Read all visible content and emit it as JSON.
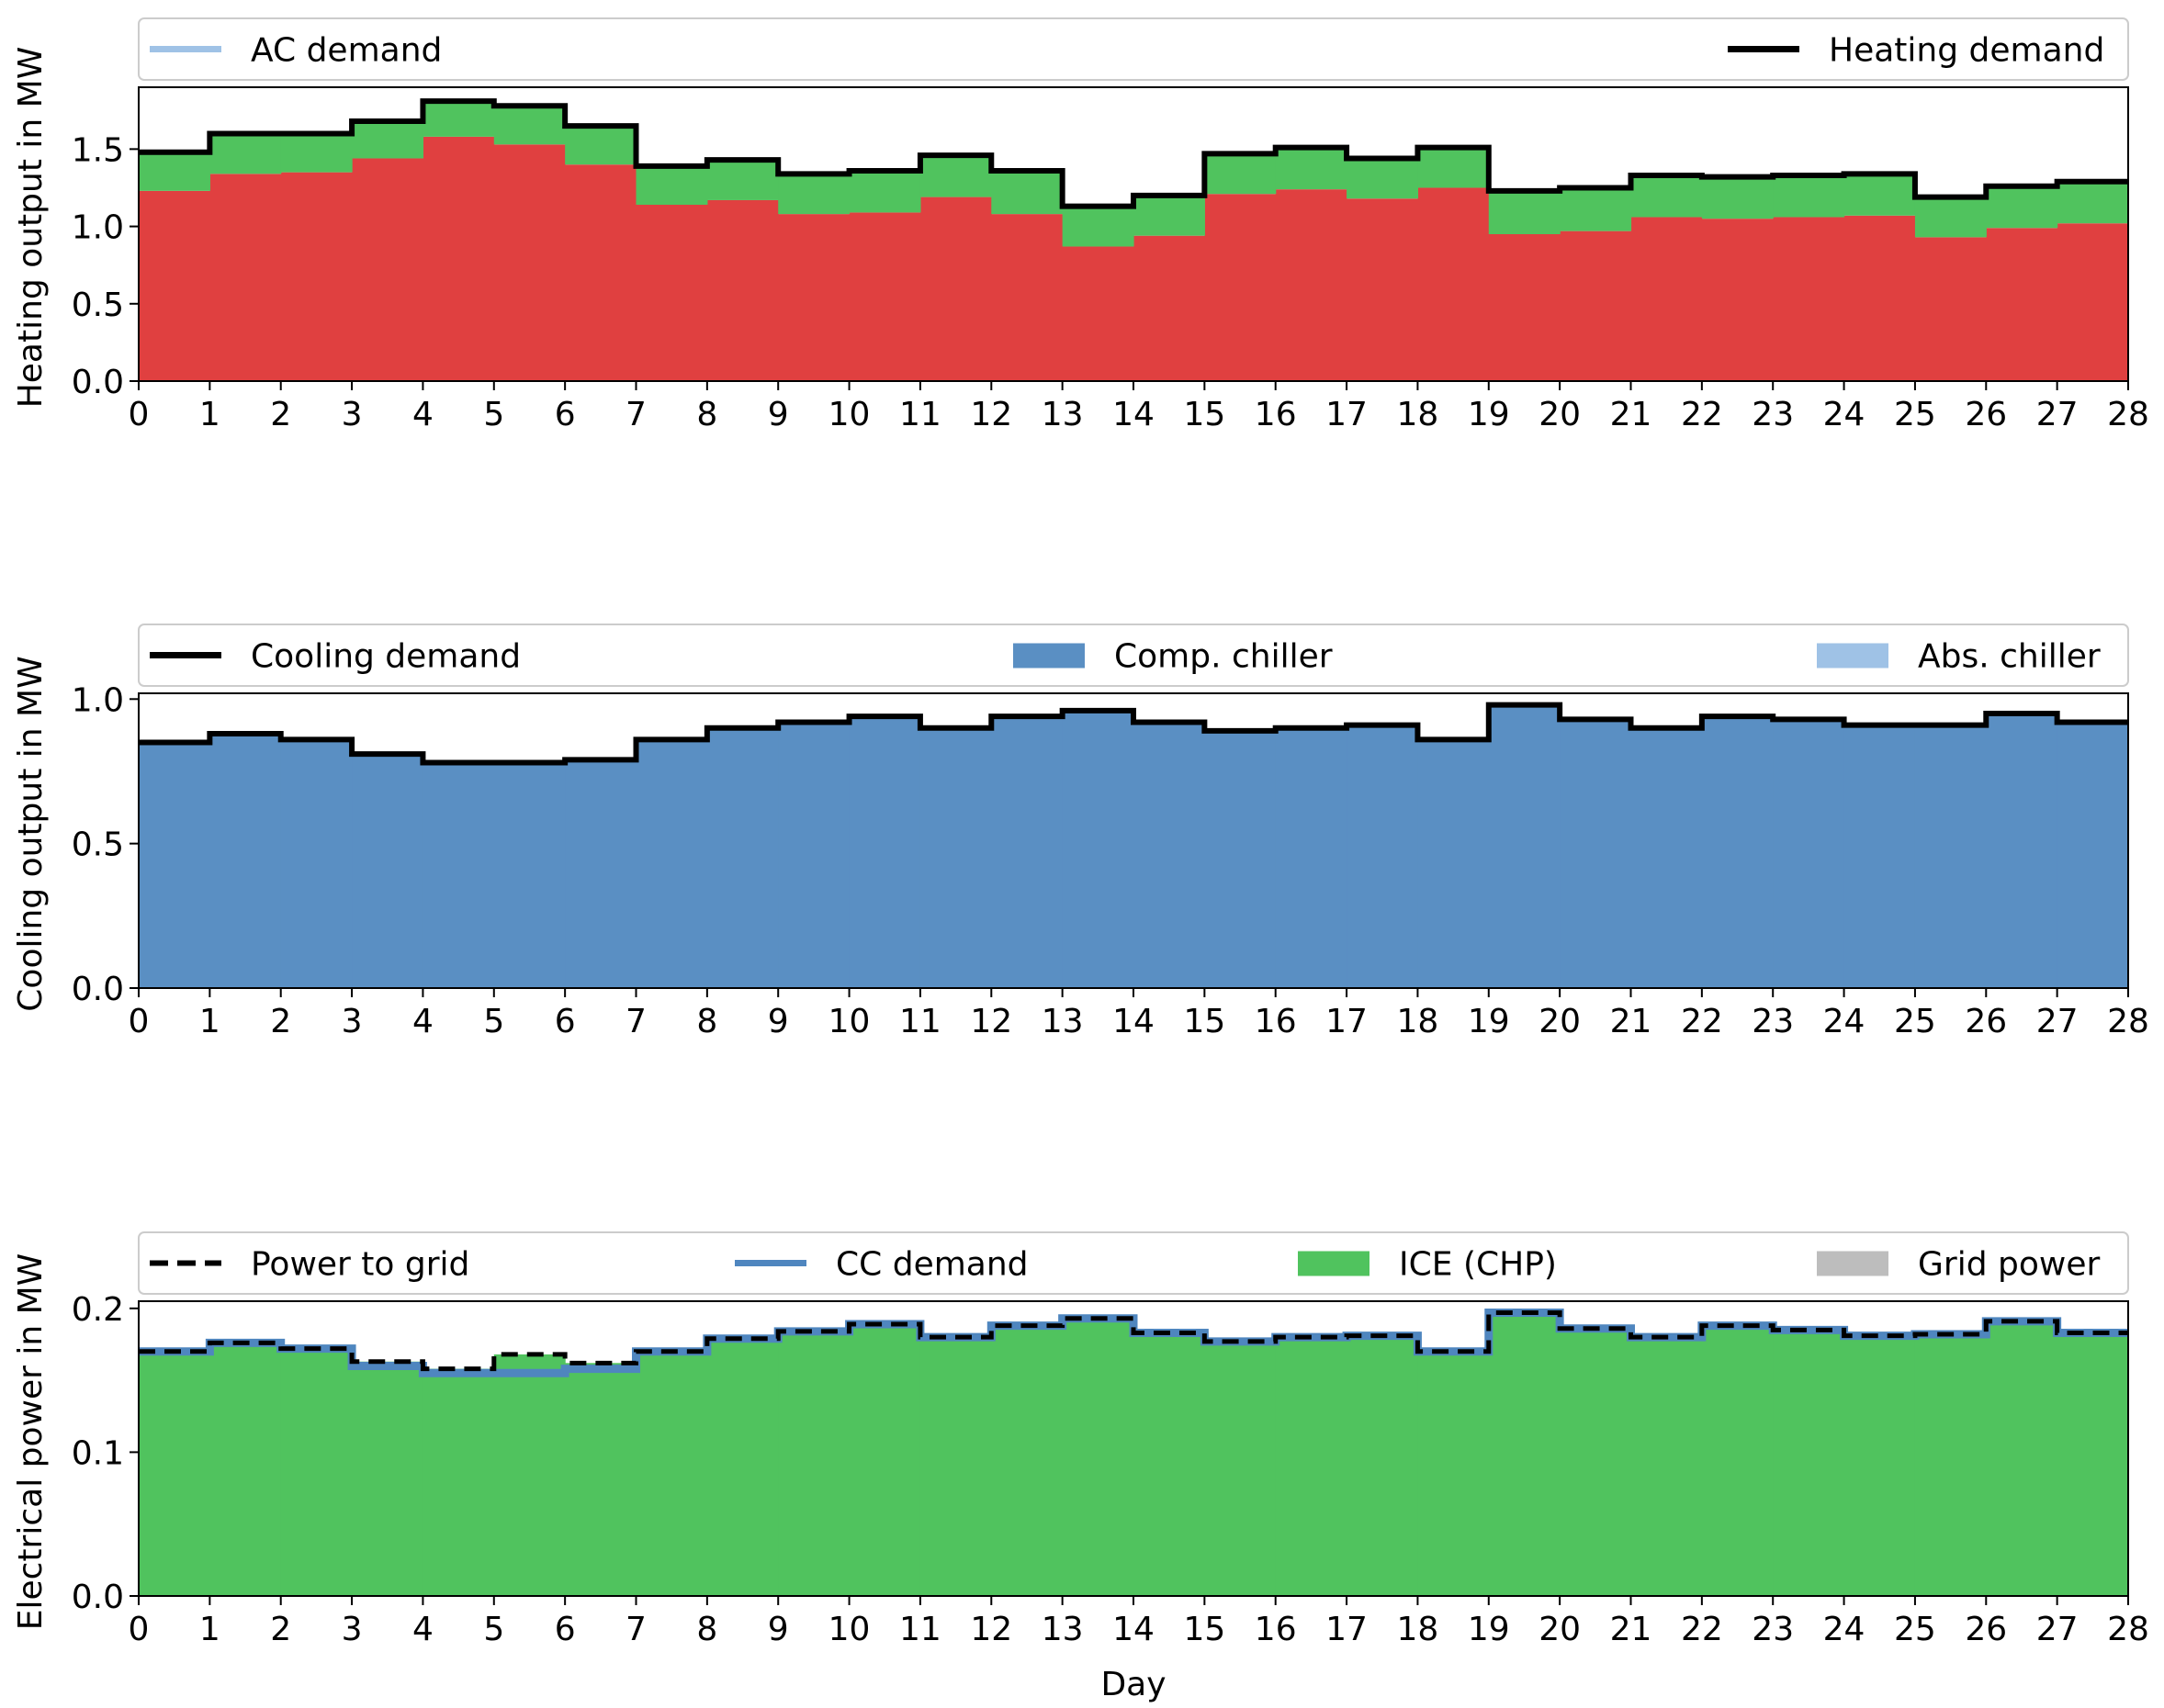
{
  "colors": {
    "heating_red": "#e04040",
    "ice_green": "#50c35e",
    "comp_chiller_blue": "#5a8fc3",
    "abs_chiller_lightblue": "#9fc2e6",
    "grid_gray": "#bdbdbd",
    "cc_demand_blue": "#4f86bf",
    "line_black": "#000000"
  },
  "chart_data": [
    {
      "type": "area",
      "step": "post",
      "ylabel": "Heating output in MW",
      "xlabel": "",
      "xlim": [
        0,
        28
      ],
      "ylim": [
        0,
        1.9
      ],
      "yticks": [
        0.0,
        0.5,
        1.0,
        1.5
      ],
      "ytick_labels": [
        "0.0",
        "0.5",
        "1.0",
        "1.5"
      ],
      "xticks": [
        0,
        1,
        2,
        3,
        4,
        5,
        6,
        7,
        8,
        9,
        10,
        11,
        12,
        13,
        14,
        15,
        16,
        17,
        18,
        19,
        20,
        21,
        22,
        23,
        24,
        25,
        26,
        27,
        28
      ],
      "x": [
        0,
        1,
        2,
        3,
        4,
        5,
        6,
        7,
        8,
        9,
        10,
        11,
        12,
        13,
        14,
        15,
        16,
        17,
        18,
        19,
        20,
        21,
        22,
        23,
        24,
        25,
        26,
        27
      ],
      "legend": {
        "placement": "top",
        "items": [
          {
            "label": "AC demand",
            "kind": "line",
            "color": "#9fc2e6",
            "align": "left"
          },
          {
            "label": "Heating demand",
            "kind": "line",
            "color": "#000000",
            "align": "right"
          }
        ]
      },
      "series": [
        {
          "name": "",
          "kind": "stack",
          "color": "#e04040",
          "values": [
            1.23,
            1.34,
            1.35,
            1.44,
            1.58,
            1.53,
            1.4,
            1.14,
            1.17,
            1.08,
            1.09,
            1.19,
            1.08,
            0.87,
            0.94,
            1.21,
            1.24,
            1.18,
            1.25,
            0.95,
            0.97,
            1.06,
            1.05,
            1.06,
            1.07,
            0.93,
            0.99,
            1.02
          ]
        },
        {
          "name": "",
          "kind": "stack",
          "color": "#50c35e",
          "values": [
            0.25,
            0.26,
            0.25,
            0.24,
            0.23,
            0.25,
            0.25,
            0.25,
            0.26,
            0.26,
            0.27,
            0.27,
            0.28,
            0.26,
            0.26,
            0.26,
            0.27,
            0.26,
            0.26,
            0.28,
            0.28,
            0.27,
            0.27,
            0.27,
            0.27,
            0.26,
            0.27,
            0.27
          ]
        },
        {
          "name": "Heating demand",
          "kind": "line",
          "color": "#000000",
          "values": [
            1.48,
            1.6,
            1.6,
            1.68,
            1.81,
            1.78,
            1.65,
            1.39,
            1.43,
            1.34,
            1.36,
            1.46,
            1.36,
            1.13,
            1.2,
            1.47,
            1.51,
            1.44,
            1.51,
            1.23,
            1.25,
            1.33,
            1.32,
            1.33,
            1.34,
            1.19,
            1.26,
            1.29
          ]
        }
      ]
    },
    {
      "type": "area",
      "step": "post",
      "ylabel": "Cooling output in MW",
      "xlabel": "",
      "xlim": [
        0,
        28
      ],
      "ylim": [
        0,
        1.02
      ],
      "yticks": [
        0.0,
        0.5,
        1.0
      ],
      "ytick_labels": [
        "0.0",
        "0.5",
        "1.0"
      ],
      "xticks": [
        0,
        1,
        2,
        3,
        4,
        5,
        6,
        7,
        8,
        9,
        10,
        11,
        12,
        13,
        14,
        15,
        16,
        17,
        18,
        19,
        20,
        21,
        22,
        23,
        24,
        25,
        26,
        27,
        28
      ],
      "x": [
        0,
        1,
        2,
        3,
        4,
        5,
        6,
        7,
        8,
        9,
        10,
        11,
        12,
        13,
        14,
        15,
        16,
        17,
        18,
        19,
        20,
        21,
        22,
        23,
        24,
        25,
        26,
        27
      ],
      "legend": {
        "placement": "top",
        "items": [
          {
            "label": "Cooling demand",
            "kind": "line",
            "color": "#000000",
            "align": "left"
          },
          {
            "label": "Comp. chiller",
            "kind": "patch",
            "color": "#5a8fc3",
            "align": "center"
          },
          {
            "label": "Abs. chiller",
            "kind": "patch",
            "color": "#9fc2e6",
            "align": "right"
          }
        ]
      },
      "series": [
        {
          "name": "Comp. chiller",
          "kind": "stack",
          "color": "#5a8fc3",
          "values": [
            0.85,
            0.88,
            0.86,
            0.81,
            0.78,
            0.78,
            0.79,
            0.86,
            0.9,
            0.92,
            0.94,
            0.9,
            0.94,
            0.96,
            0.92,
            0.89,
            0.9,
            0.91,
            0.86,
            0.98,
            0.93,
            0.9,
            0.94,
            0.93,
            0.91,
            0.91,
            0.95,
            0.92
          ]
        },
        {
          "name": "Cooling demand",
          "kind": "line",
          "color": "#000000",
          "values": [
            0.85,
            0.88,
            0.86,
            0.81,
            0.78,
            0.78,
            0.79,
            0.86,
            0.9,
            0.92,
            0.94,
            0.9,
            0.94,
            0.96,
            0.92,
            0.89,
            0.9,
            0.91,
            0.86,
            0.98,
            0.93,
            0.9,
            0.94,
            0.93,
            0.91,
            0.91,
            0.95,
            0.92
          ]
        }
      ]
    },
    {
      "type": "area",
      "step": "post",
      "ylabel": "Electrical power in MW",
      "xlabel": "Day",
      "xlim": [
        0,
        28
      ],
      "ylim": [
        0,
        0.205
      ],
      "yticks": [
        0.0,
        0.1,
        0.2
      ],
      "ytick_labels": [
        "0.0",
        "0.1",
        "0.2"
      ],
      "xticks": [
        0,
        1,
        2,
        3,
        4,
        5,
        6,
        7,
        8,
        9,
        10,
        11,
        12,
        13,
        14,
        15,
        16,
        17,
        18,
        19,
        20,
        21,
        22,
        23,
        24,
        25,
        26,
        27,
        28
      ],
      "x": [
        0,
        1,
        2,
        3,
        4,
        5,
        6,
        7,
        8,
        9,
        10,
        11,
        12,
        13,
        14,
        15,
        16,
        17,
        18,
        19,
        20,
        21,
        22,
        23,
        24,
        25,
        26,
        27
      ],
      "legend": {
        "placement": "top",
        "items": [
          {
            "label": "Power to grid",
            "kind": "dashed",
            "color": "#000000",
            "align": "left"
          },
          {
            "label": "CC demand",
            "kind": "line",
            "color": "#4f86bf",
            "align": "center-left"
          },
          {
            "label": "ICE (CHP)",
            "kind": "patch",
            "color": "#50c35e",
            "align": "center-right"
          },
          {
            "label": "Grid power",
            "kind": "patch",
            "color": "#bdbdbd",
            "align": "right"
          }
        ]
      },
      "series": [
        {
          "name": "ICE (CHP)",
          "kind": "stack",
          "color": "#50c35e",
          "values": [
            0.17,
            0.176,
            0.172,
            0.163,
            0.158,
            0.168,
            0.162,
            0.17,
            0.179,
            0.184,
            0.189,
            0.18,
            0.188,
            0.193,
            0.183,
            0.177,
            0.18,
            0.181,
            0.17,
            0.197,
            0.186,
            0.18,
            0.188,
            0.185,
            0.181,
            0.182,
            0.191,
            0.183
          ]
        },
        {
          "name": "CC demand",
          "kind": "line",
          "color": "#4f86bf",
          "values": [
            0.17,
            0.176,
            0.172,
            0.16,
            0.155,
            0.155,
            0.158,
            0.17,
            0.179,
            0.184,
            0.189,
            0.18,
            0.188,
            0.193,
            0.183,
            0.177,
            0.18,
            0.181,
            0.17,
            0.197,
            0.186,
            0.18,
            0.188,
            0.185,
            0.181,
            0.182,
            0.191,
            0.183
          ]
        },
        {
          "name": "Power to grid",
          "kind": "dashed",
          "color": "#000000",
          "values": [
            0.17,
            0.176,
            0.172,
            0.163,
            0.158,
            0.168,
            0.162,
            0.17,
            0.179,
            0.184,
            0.189,
            0.18,
            0.188,
            0.193,
            0.183,
            0.177,
            0.18,
            0.181,
            0.17,
            0.197,
            0.186,
            0.18,
            0.188,
            0.185,
            0.181,
            0.182,
            0.191,
            0.183
          ]
        }
      ]
    }
  ]
}
